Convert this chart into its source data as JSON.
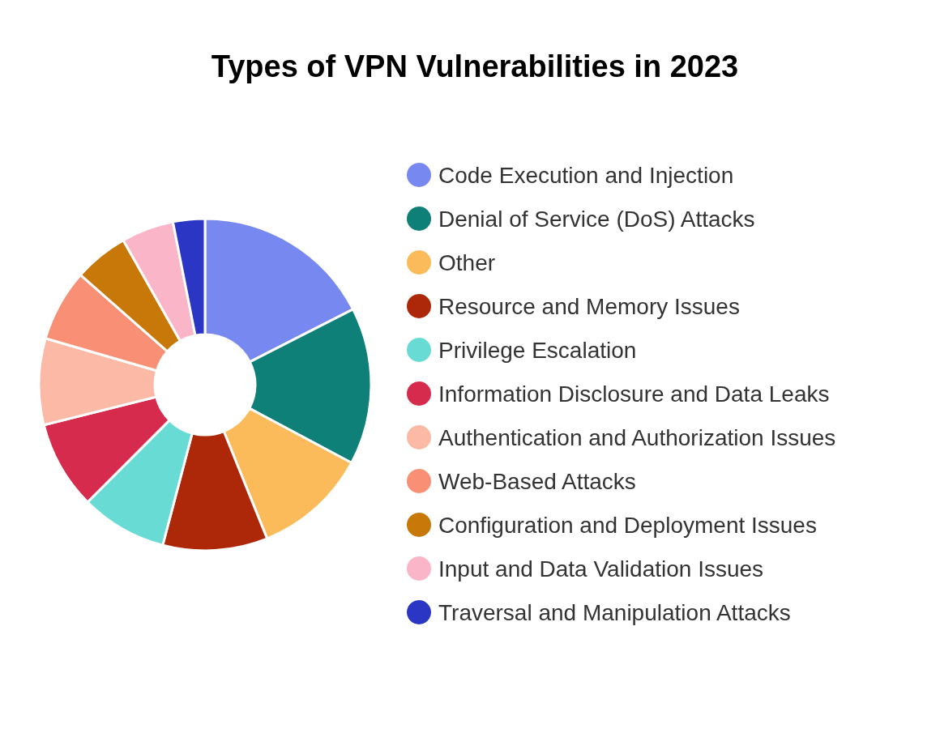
{
  "chart_data": {
    "type": "donut",
    "title": "Types of VPN Vulnerabilities in 2023",
    "categories": [
      "Code Execution and Injection",
      "Denial of Service (DoS) Attacks",
      "Other",
      "Resource and Memory Issues",
      "Privilege Escalation",
      "Information Disclosure and Data Leaks",
      "Authentication and Authorization Issues",
      "Web-Based Attacks",
      "Configuration and Deployment Issues",
      "Input and Data Validation Issues",
      "Traversal and Manipulation Attacks"
    ],
    "values": [
      17.5,
      15.3,
      11.1,
      10.2,
      8.4,
      8.6,
      8.4,
      7.0,
      5.3,
      5.1,
      3.1
    ],
    "colors": [
      "#7789f0",
      "#0e8078",
      "#fbbb5a",
      "#ad2808",
      "#68dcd4",
      "#d62b4d",
      "#fbb9a6",
      "#f98f75",
      "#c87808",
      "#fbb5c8",
      "#2b36c4"
    ],
    "legend": "right"
  }
}
